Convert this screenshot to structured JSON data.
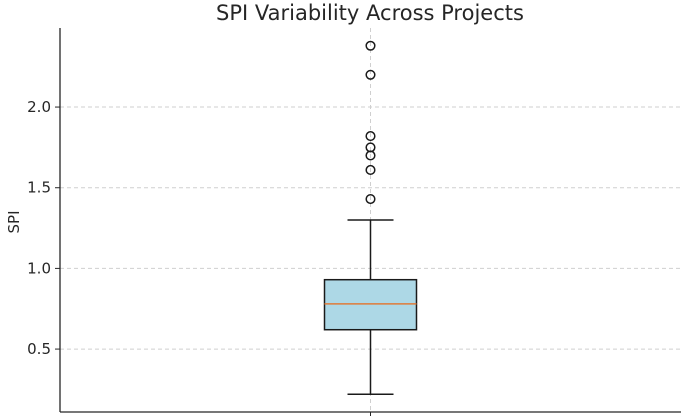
{
  "chart_data": {
    "type": "box",
    "title": "SPI Variability Across Projects",
    "xlabel": "",
    "ylabel": "SPI",
    "ylim": [
      0.11,
      2.49
    ],
    "yticks": [
      0.5,
      1.0,
      1.5,
      2.0
    ],
    "ytick_labels": [
      "0.5",
      "1.0",
      "1.5",
      "2.0"
    ],
    "grid": true,
    "box": {
      "whisker_low": 0.22,
      "q1": 0.62,
      "median": 0.78,
      "q3": 0.93,
      "whisker_high": 1.3
    },
    "outliers": [
      1.43,
      1.61,
      1.7,
      1.75,
      1.82,
      2.2,
      2.38
    ],
    "colors": {
      "box_fill": "#add8e6",
      "median_line": "#e07b39",
      "lines": "#1a1a1a",
      "grid": "#cfcfcf"
    }
  }
}
